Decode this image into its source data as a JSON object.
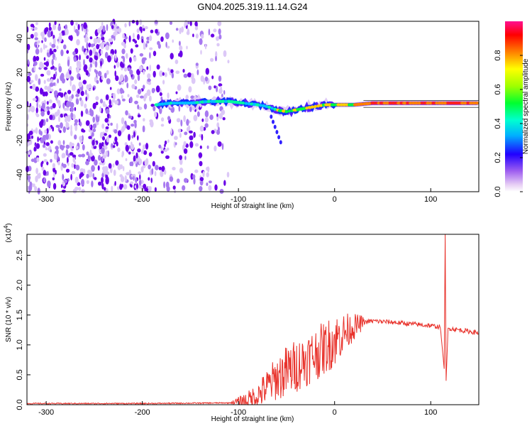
{
  "title": "GN04.2025.319.11.14.G24",
  "chart_data": [
    {
      "type": "heatmap",
      "name": "spectrogram",
      "xlabel": "Height of straight line (km)",
      "ylabel": "Frequency (Hz)",
      "xlim": [
        -320,
        150
      ],
      "ylim": [
        -50,
        50
      ],
      "xticks": [
        "-300",
        "-200",
        "-100",
        "0",
        "100"
      ],
      "xtick_values": [
        -300,
        -200,
        -100,
        0,
        100
      ],
      "yticks": [
        "-40",
        "-20",
        "0",
        "20",
        "40"
      ],
      "ytick_values": [
        -40,
        -20,
        0,
        20,
        40
      ],
      "colorbar": {
        "label": "Normalized spectral amplitude",
        "range": [
          0,
          1
        ],
        "ticks": [
          "0.0",
          "0.2",
          "0.4",
          "0.6",
          "0.8"
        ],
        "tick_values": [
          0.0,
          0.2,
          0.4,
          0.6,
          0.8
        ]
      },
      "ridge": {
        "description_note": "dominant signal track",
        "x_start": -185,
        "points": [
          [
            -185,
            1
          ],
          [
            -170,
            2
          ],
          [
            -150,
            2
          ],
          [
            -130,
            3
          ],
          [
            -110,
            3
          ],
          [
            -95,
            2
          ],
          [
            -80,
            1
          ],
          [
            -70,
            0
          ],
          [
            -60,
            -2
          ],
          [
            -50,
            -3
          ],
          [
            -40,
            -2
          ],
          [
            -30,
            -1
          ],
          [
            -20,
            0
          ],
          [
            -10,
            1
          ],
          [
            0,
            1
          ],
          [
            20,
            1
          ],
          [
            40,
            2
          ],
          [
            60,
            2
          ],
          [
            80,
            2
          ],
          [
            100,
            2
          ],
          [
            112,
            2
          ],
          [
            150,
            2
          ]
        ],
        "noise_region_end": -110
      }
    },
    {
      "type": "line",
      "name": "snr",
      "xlabel": "Height of straight line (km)",
      "ylabel": "SNR (10 * v/v)",
      "yscale_label": "(x10",
      "yscale_exp": "4",
      "yscale_close": ")",
      "xlim": [
        -320,
        150
      ],
      "ylim": [
        0,
        2.85
      ],
      "xticks": [
        "-300",
        "-200",
        "-100",
        "0",
        "100"
      ],
      "xtick_values": [
        -300,
        -200,
        -100,
        0,
        100
      ],
      "yticks": [
        "0.0",
        "0.5",
        "1.0",
        "1.5",
        "2.0",
        "2.5"
      ],
      "ytick_values": [
        0.0,
        0.5,
        1.0,
        1.5,
        2.0,
        2.5
      ],
      "color": "#e8322b",
      "series_anchor_points": [
        [
          -320,
          0.02
        ],
        [
          -200,
          0.02
        ],
        [
          -110,
          0.03
        ],
        [
          -90,
          0.08
        ],
        [
          -80,
          0.15
        ],
        [
          -70,
          0.3
        ],
        [
          -60,
          0.45
        ],
        [
          -50,
          0.55
        ],
        [
          -40,
          0.65
        ],
        [
          -30,
          0.75
        ],
        [
          -20,
          0.85
        ],
        [
          -10,
          0.95
        ],
        [
          0,
          1.08
        ],
        [
          10,
          1.2
        ],
        [
          20,
          1.3
        ],
        [
          30,
          1.38
        ],
        [
          40,
          1.4
        ],
        [
          60,
          1.38
        ],
        [
          80,
          1.35
        ],
        [
          100,
          1.32
        ],
        [
          110,
          1.3
        ],
        [
          114,
          0.6
        ],
        [
          115,
          2.85
        ],
        [
          116,
          0.4
        ],
        [
          118,
          1.28
        ],
        [
          130,
          1.25
        ],
        [
          150,
          1.2
        ]
      ]
    }
  ]
}
